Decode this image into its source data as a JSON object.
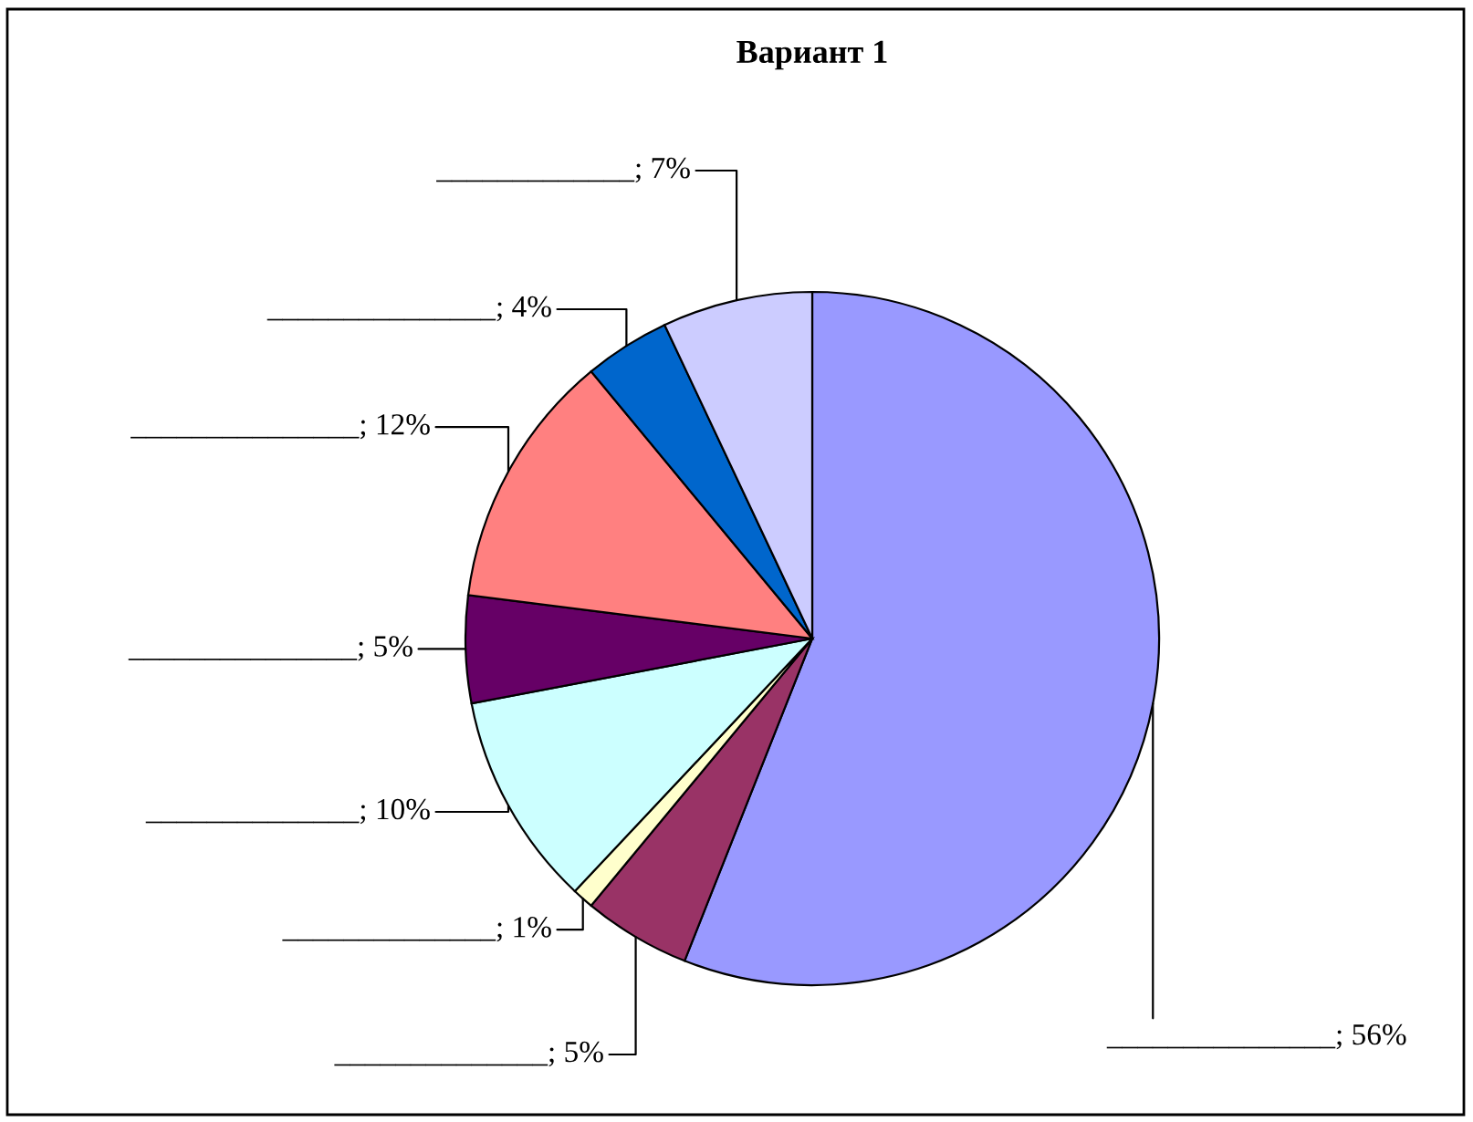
{
  "chart_data": {
    "type": "pie",
    "title": "Вариант 1",
    "categories": [
      "_______________",
      "______________",
      "______________",
      "______________",
      "_______________",
      "_______________",
      "_______________",
      "_____________"
    ],
    "value_labels": [
      "56%",
      "5%",
      "1%",
      "10%",
      "5%",
      "12%",
      "4%",
      "7%"
    ],
    "values": [
      56,
      5,
      1,
      10,
      5,
      12,
      4,
      7
    ],
    "colors": [
      "#9999ff",
      "#993366",
      "#ffffcc",
      "#ccffff",
      "#660066",
      "#ff8080",
      "#0066cc",
      "#ccccff"
    ],
    "legend": false
  }
}
